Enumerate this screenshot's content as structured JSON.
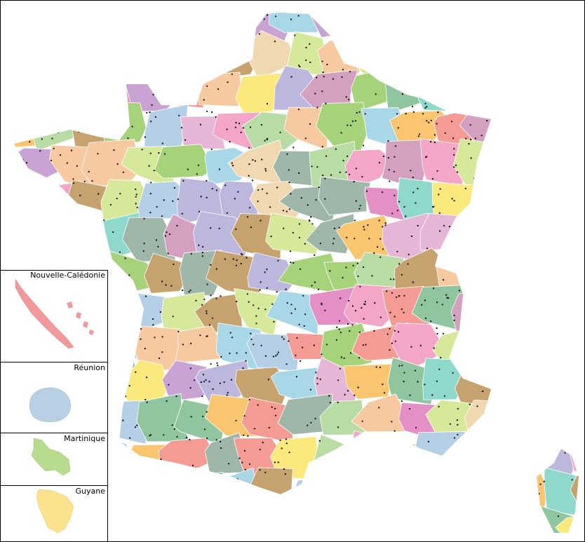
{
  "insets": [
    {
      "label": "Nouvelle-Calédonie"
    },
    {
      "label": "Réunion"
    },
    {
      "label": "Martinique"
    },
    {
      "label": "Guyane"
    }
  ]
}
